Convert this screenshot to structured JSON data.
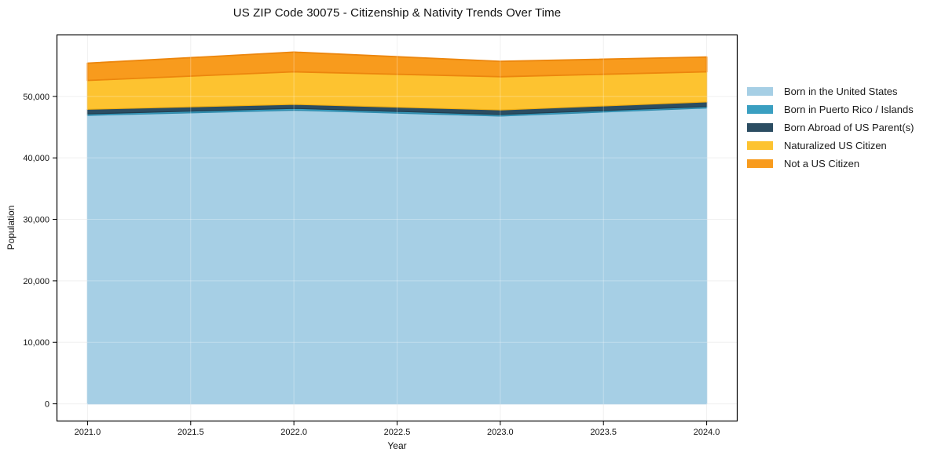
{
  "title": "US ZIP Code 30075 - Citizenship & Nativity Trends Over Time",
  "chart_data": {
    "type": "area",
    "stacked": true,
    "title": "US ZIP Code 30075 - Citizenship & Nativity Trends Over Time",
    "xlabel": "Year",
    "ylabel": "Population",
    "x": [
      2021,
      2022,
      2023,
      2024
    ],
    "series": [
      {
        "name": "Born in the United States",
        "fill": "#a6cfe5",
        "edge": "#8fc0dc",
        "values": [
          46900,
          47750,
          46800,
          48100
        ]
      },
      {
        "name": "Born in Puerto Rico / Islands",
        "fill": "#3a9fc1",
        "edge": "#2f8aab",
        "values": [
          250,
          300,
          250,
          250
        ]
      },
      {
        "name": "Born Abroad of US Parent(s)",
        "fill": "#2b4d62",
        "edge": "#223d4e",
        "values": [
          750,
          650,
          750,
          750
        ]
      },
      {
        "name": "Naturalized US Citizen",
        "fill": "#fdc330",
        "edge": "#f0ae14",
        "values": [
          4700,
          5300,
          5400,
          4900
        ]
      },
      {
        "name": "Not a US Citizen",
        "fill": "#f89b1d",
        "edge": "#ec860d",
        "values": [
          2800,
          3200,
          2500,
          2400
        ]
      }
    ],
    "totals": [
      55400,
      57200,
      55700,
      56400
    ],
    "x_ticks": {
      "values": [
        2021,
        2021.5,
        2022,
        2022.5,
        2023,
        2023.5,
        2024
      ],
      "labels": [
        "2021.0",
        "2021.5",
        "2022.0",
        "2022.5",
        "2023.0",
        "2023.5",
        "2024.0"
      ]
    },
    "y_ticks": {
      "values": [
        0,
        10000,
        20000,
        30000,
        40000,
        50000
      ],
      "labels": [
        "0",
        "10,000",
        "20,000",
        "30,000",
        "40,000",
        "50,000"
      ]
    },
    "xlim": [
      2020.85,
      2024.15
    ],
    "ylim": [
      -2860,
      60060
    ],
    "grid": true,
    "legend_position": "right-outside"
  }
}
